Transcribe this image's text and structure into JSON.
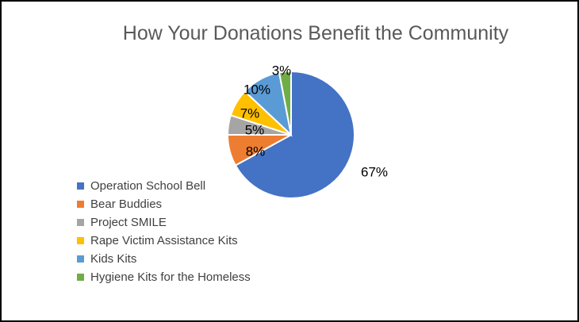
{
  "chart_data": {
    "type": "pie",
    "title": "How Your Donations Benefit the Community",
    "categories": [
      "Operation School Bell",
      "Bear Buddies",
      "Project SMILE",
      "Rape Victim Assistance Kits",
      "Kids Kits",
      "Hygiene Kits for the Homeless"
    ],
    "values": [
      67,
      8,
      5,
      7,
      10,
      3
    ],
    "data_labels": [
      "67%",
      "8%",
      "5%",
      "7%",
      "10%",
      "3%"
    ],
    "colors": [
      "#4472C4",
      "#ED7D31",
      "#A5A5A5",
      "#FFC000",
      "#5B9BD5",
      "#70AD47"
    ],
    "legend_position": "left"
  }
}
